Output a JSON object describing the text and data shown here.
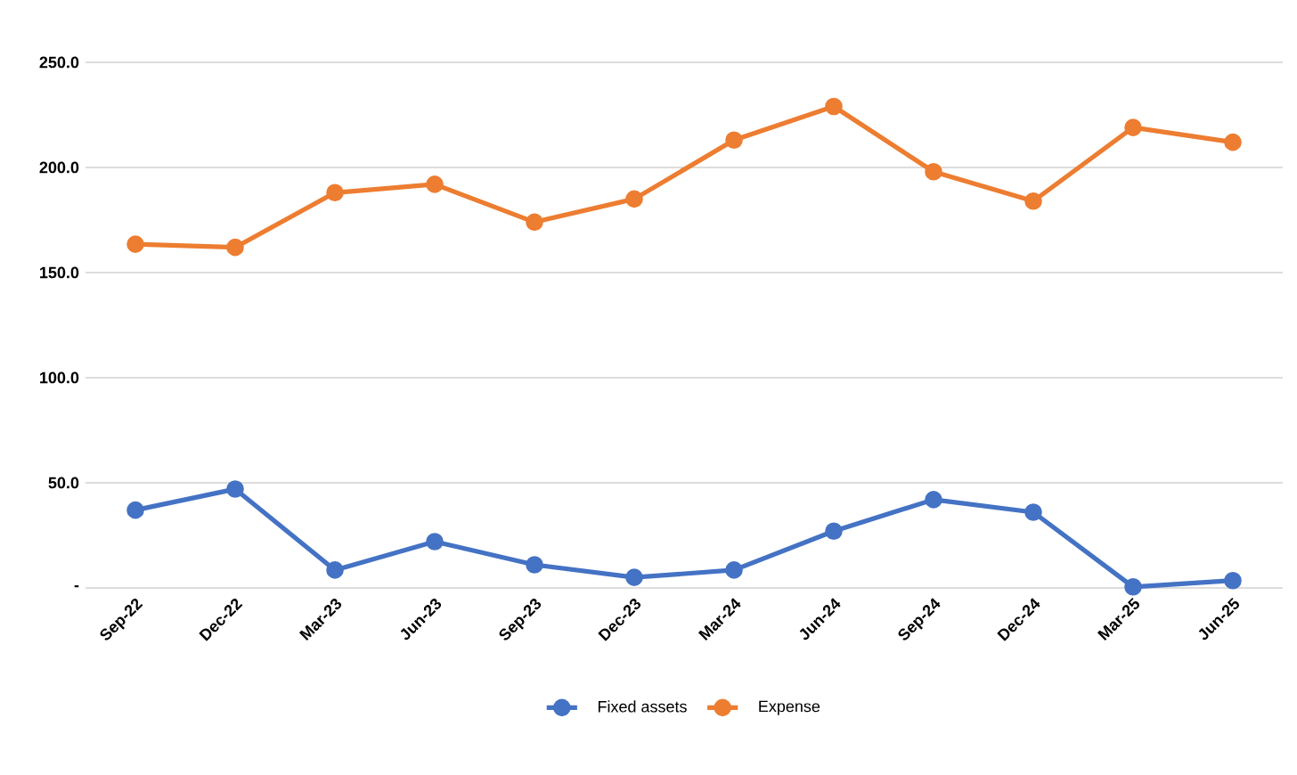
{
  "chart_data": {
    "type": "line",
    "categories": [
      "Sep-22",
      "Dec-22",
      "Mar-23",
      "Jun-23",
      "Sep-23",
      "Dec-23",
      "Mar-24",
      "Jun-24",
      "Sep-24",
      "Dec-24",
      "Mar-25",
      "Jun-25"
    ],
    "series": [
      {
        "name": "Fixed assets",
        "color": "#4472c4",
        "values": [
          37,
          47,
          8.5,
          22,
          11,
          5,
          8.5,
          27,
          42,
          36,
          0.5,
          3.5
        ]
      },
      {
        "name": "Expense",
        "color": "#ed7d31",
        "values": [
          163.5,
          162,
          188,
          192,
          174,
          185,
          213,
          229,
          198,
          184,
          219,
          212
        ]
      }
    ],
    "ylim": [
      0,
      250
    ],
    "yticks": [
      {
        "value": 0,
        "label": "-"
      },
      {
        "value": 50,
        "label": "50.0"
      },
      {
        "value": 100,
        "label": "100.0"
      },
      {
        "value": 150,
        "label": "150.0"
      },
      {
        "value": 200,
        "label": "200.0"
      },
      {
        "value": 250,
        "label": "250.0"
      }
    ],
    "grid": "y",
    "legend": "bottom",
    "marker": "circle",
    "line_style": "solid"
  }
}
